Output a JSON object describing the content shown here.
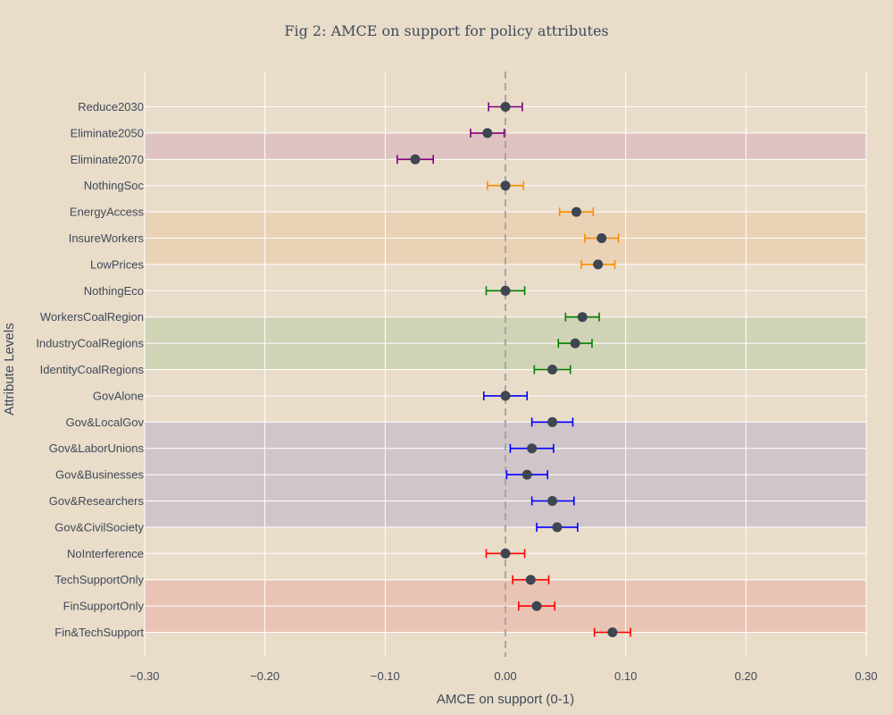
{
  "chart_data": {
    "type": "scatter",
    "title": "Fig 2: AMCE on support for policy attributes",
    "xlabel": "AMCE on support (0-1)",
    "ylabel": "Attribute Levels",
    "xlim": [
      -0.3,
      0.3
    ],
    "x_ticks": [
      -0.3,
      -0.2,
      -0.1,
      0,
      0.1,
      0.2,
      0.3
    ],
    "x_tick_labels": [
      "−0.30",
      "−0.20",
      "−0.10",
      "0.00",
      "0.10",
      "0.20",
      "0.30"
    ],
    "reference_line": 0,
    "grid": true,
    "point_color": "#3d4651",
    "groups": [
      {
        "color": "#800080",
        "band_color": "#dfc2c2",
        "levels": [
          {
            "label": "Reduce2030",
            "estimate": 0.0,
            "ci_low": -0.014,
            "ci_high": 0.014
          },
          {
            "label": "Eliminate2050",
            "estimate": -0.015,
            "ci_low": -0.029,
            "ci_high": -0.001
          },
          {
            "label": "Eliminate2070",
            "estimate": -0.075,
            "ci_low": -0.09,
            "ci_high": -0.06
          }
        ]
      },
      {
        "color": "#ff8c00",
        "band_color": "#e9d2b6",
        "levels": [
          {
            "label": "NothingSoc",
            "estimate": 0.0,
            "ci_low": -0.015,
            "ci_high": 0.015
          },
          {
            "label": "EnergyAccess",
            "estimate": 0.059,
            "ci_low": 0.045,
            "ci_high": 0.073
          },
          {
            "label": "InsureWorkers",
            "estimate": 0.08,
            "ci_low": 0.066,
            "ci_high": 0.094
          },
          {
            "label": "LowPrices",
            "estimate": 0.077,
            "ci_low": 0.063,
            "ci_high": 0.091
          }
        ]
      },
      {
        "color": "#008000",
        "band_color": "#d1d3b6",
        "levels": [
          {
            "label": "NothingEco",
            "estimate": 0.0,
            "ci_low": -0.016,
            "ci_high": 0.016
          },
          {
            "label": "WorkersCoalRegion",
            "estimate": 0.064,
            "ci_low": 0.05,
            "ci_high": 0.078
          },
          {
            "label": "IndustryCoalRegions",
            "estimate": 0.058,
            "ci_low": 0.044,
            "ci_high": 0.072
          },
          {
            "label": "IdentityCoalRegions",
            "estimate": 0.039,
            "ci_low": 0.024,
            "ci_high": 0.054
          }
        ]
      },
      {
        "color": "#0000ff",
        "band_color": "#d0c5c9",
        "levels": [
          {
            "label": "GovAlone",
            "estimate": 0.0,
            "ci_low": -0.018,
            "ci_high": 0.018
          },
          {
            "label": "Gov&LocalGov",
            "estimate": 0.039,
            "ci_low": 0.022,
            "ci_high": 0.056
          },
          {
            "label": "Gov&LaborUnions",
            "estimate": 0.022,
            "ci_low": 0.004,
            "ci_high": 0.04
          },
          {
            "label": "Gov&Businesses",
            "estimate": 0.018,
            "ci_low": 0.001,
            "ci_high": 0.035
          },
          {
            "label": "Gov&Researchers",
            "estimate": 0.039,
            "ci_low": 0.022,
            "ci_high": 0.057
          },
          {
            "label": "Gov&CivilSociety",
            "estimate": 0.043,
            "ci_low": 0.026,
            "ci_high": 0.06
          }
        ]
      },
      {
        "color": "#ff0000",
        "band_color": "#e9c4b4",
        "levels": [
          {
            "label": "NoInterference",
            "estimate": 0.0,
            "ci_low": -0.016,
            "ci_high": 0.016
          },
          {
            "label": "TechSupportOnly",
            "estimate": 0.021,
            "ci_low": 0.006,
            "ci_high": 0.036
          },
          {
            "label": "FinSupportOnly",
            "estimate": 0.026,
            "ci_low": 0.011,
            "ci_high": 0.041
          },
          {
            "label": "Fin&TechSupport",
            "estimate": 0.089,
            "ci_low": 0.074,
            "ci_high": 0.104
          }
        ]
      }
    ]
  }
}
